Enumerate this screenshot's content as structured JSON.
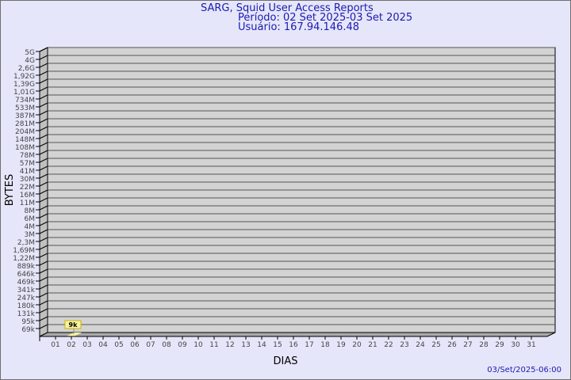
{
  "header": {
    "title": "SARG, Squid User Access Reports",
    "period": "Período: 02 Set 2025-03 Set 2025",
    "user": "Usuário: 167.94.146.48"
  },
  "footer": {
    "timestamp": "03/Set/2025-06:00"
  },
  "chart_data": {
    "type": "bar",
    "title": "SARG, Squid User Access Reports",
    "xlabel": "DIAS",
    "ylabel": "BYTES",
    "y_scale": "log",
    "y_tick_labels": [
      "5G",
      "4G",
      "2,6G",
      "1,92G",
      "1,39G",
      "1,01G",
      "734M",
      "533M",
      "387M",
      "281M",
      "204M",
      "148M",
      "108M",
      "78M",
      "57M",
      "41M",
      "30M",
      "22M",
      "16M",
      "11M",
      "8M",
      "6M",
      "4M",
      "3M",
      "2,3M",
      "1,69M",
      "1,22M",
      "889k",
      "646k",
      "469k",
      "341k",
      "247k",
      "180k",
      "131k",
      "95k",
      "69k"
    ],
    "categories": [
      "01",
      "02",
      "03",
      "04",
      "05",
      "06",
      "07",
      "08",
      "09",
      "10",
      "11",
      "12",
      "13",
      "14",
      "15",
      "16",
      "17",
      "18",
      "19",
      "20",
      "21",
      "22",
      "23",
      "24",
      "25",
      "26",
      "27",
      "28",
      "29",
      "30",
      "31"
    ],
    "bars": [
      {
        "category": "02",
        "value": 9000,
        "data_label": "9k"
      }
    ],
    "grid": true,
    "colors": {
      "wall": "#d3d3d3",
      "side": "#c0c0c0",
      "floor": "#a9a9a9",
      "bar": "#f7f3a0",
      "label_bg": "#f7f3a0",
      "label_border": "#c8b400",
      "text": "#1a1ab0"
    }
  }
}
